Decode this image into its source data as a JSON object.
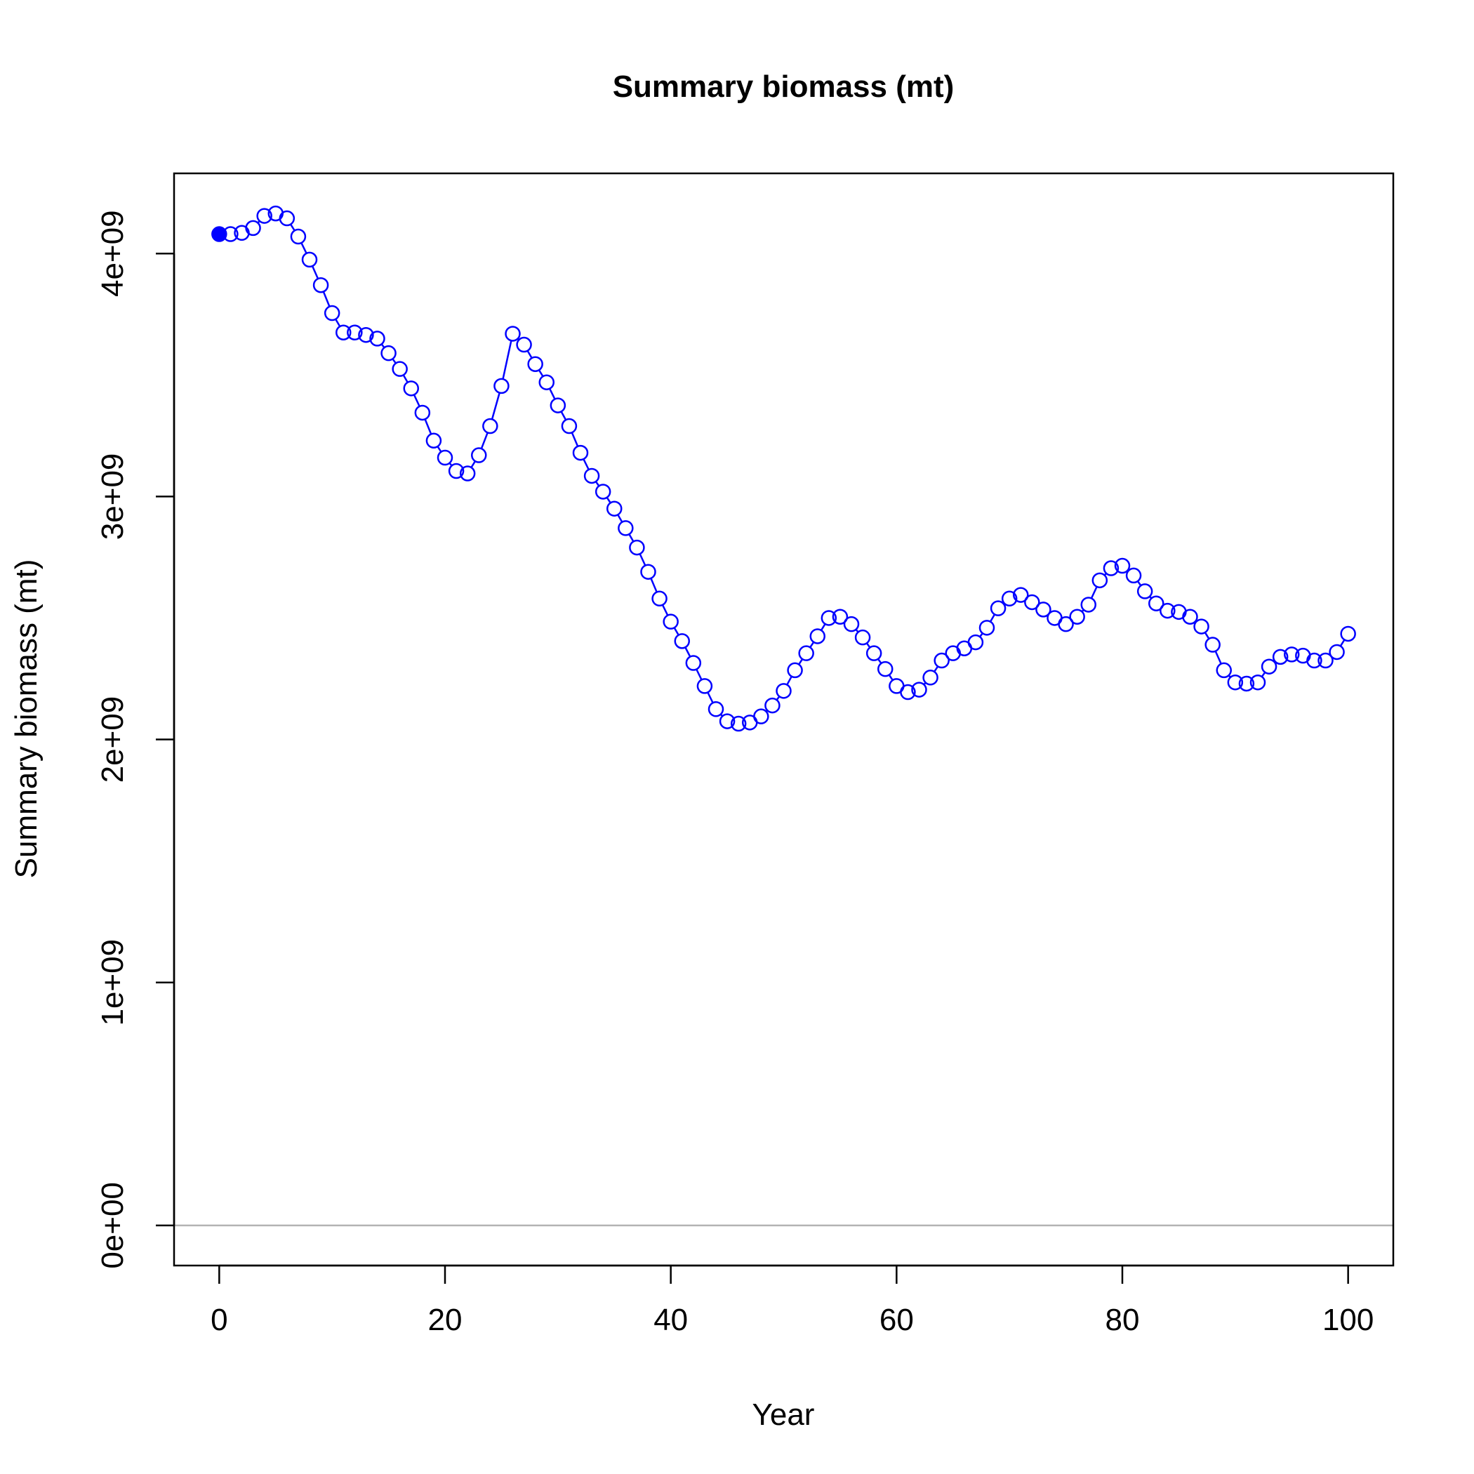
{
  "chart_data": {
    "type": "line",
    "title": "Summary biomass (mt)",
    "xlabel": "Year",
    "ylabel": "Summary biomass (mt)",
    "xlim": [
      -4,
      104
    ],
    "ylim": [
      -165000000,
      4330000000
    ],
    "xticks": [
      0,
      20,
      40,
      60,
      80,
      100
    ],
    "xtick_labels": [
      "0",
      "20",
      "40",
      "60",
      "80",
      "100"
    ],
    "yticks": [
      0,
      1000000000,
      2000000000,
      3000000000,
      4000000000
    ],
    "ytick_labels": [
      "0e+00",
      "1e+09",
      "2e+09",
      "3e+09",
      "4e+09"
    ],
    "reference_line": 0,
    "line_color": "#0000ff",
    "reference_line_color": "#b3b3b3",
    "grid": false,
    "legend": "none",
    "series": [
      {
        "marker_first": "filled-circle",
        "marker_rest": "open-circle",
        "x": [
          0,
          1,
          2,
          3,
          4,
          5,
          6,
          7,
          8,
          9,
          10,
          11,
          12,
          13,
          14,
          15,
          16,
          17,
          18,
          19,
          20,
          21,
          22,
          23,
          24,
          25,
          26,
          27,
          28,
          29,
          30,
          31,
          32,
          33,
          34,
          35,
          36,
          37,
          38,
          39,
          40,
          41,
          42,
          43,
          44,
          45,
          46,
          47,
          48,
          49,
          50,
          51,
          52,
          53,
          54,
          55,
          56,
          57,
          58,
          59,
          60,
          61,
          62,
          63,
          64,
          65,
          66,
          67,
          68,
          69,
          70,
          71,
          72,
          73,
          74,
          75,
          76,
          77,
          78,
          79,
          80,
          81,
          82,
          83,
          84,
          85,
          86,
          87,
          88,
          89,
          90,
          91,
          92,
          93,
          94,
          95,
          96,
          97,
          98,
          99,
          100
        ],
        "values": [
          4080000000,
          4080000000,
          4085000000,
          4105000000,
          4155000000,
          4165000000,
          4145000000,
          4070000000,
          3975000000,
          3870000000,
          3755000000,
          3675000000,
          3675000000,
          3665000000,
          3650000000,
          3590000000,
          3525000000,
          3445000000,
          3345000000,
          3230000000,
          3160000000,
          3105000000,
          3095000000,
          3170000000,
          3290000000,
          3455000000,
          3670000000,
          3625000000,
          3545000000,
          3470000000,
          3375000000,
          3290000000,
          3180000000,
          3085000000,
          3020000000,
          2950000000,
          2870000000,
          2790000000,
          2690000000,
          2580000000,
          2485000000,
          2405000000,
          2315000000,
          2220000000,
          2125000000,
          2075000000,
          2065000000,
          2070000000,
          2095000000,
          2140000000,
          2200000000,
          2285000000,
          2355000000,
          2425000000,
          2500000000,
          2505000000,
          2475000000,
          2420000000,
          2355000000,
          2290000000,
          2220000000,
          2195000000,
          2205000000,
          2255000000,
          2325000000,
          2355000000,
          2375000000,
          2400000000,
          2460000000,
          2540000000,
          2580000000,
          2595000000,
          2565000000,
          2535000000,
          2500000000,
          2475000000,
          2505000000,
          2555000000,
          2655000000,
          2705000000,
          2715000000,
          2675000000,
          2610000000,
          2560000000,
          2530000000,
          2525000000,
          2505000000,
          2465000000,
          2390000000,
          2285000000,
          2235000000,
          2230000000,
          2235000000,
          2300000000,
          2340000000,
          2350000000,
          2345000000,
          2325000000,
          2325000000,
          2360000000,
          2435000000
        ]
      }
    ]
  }
}
